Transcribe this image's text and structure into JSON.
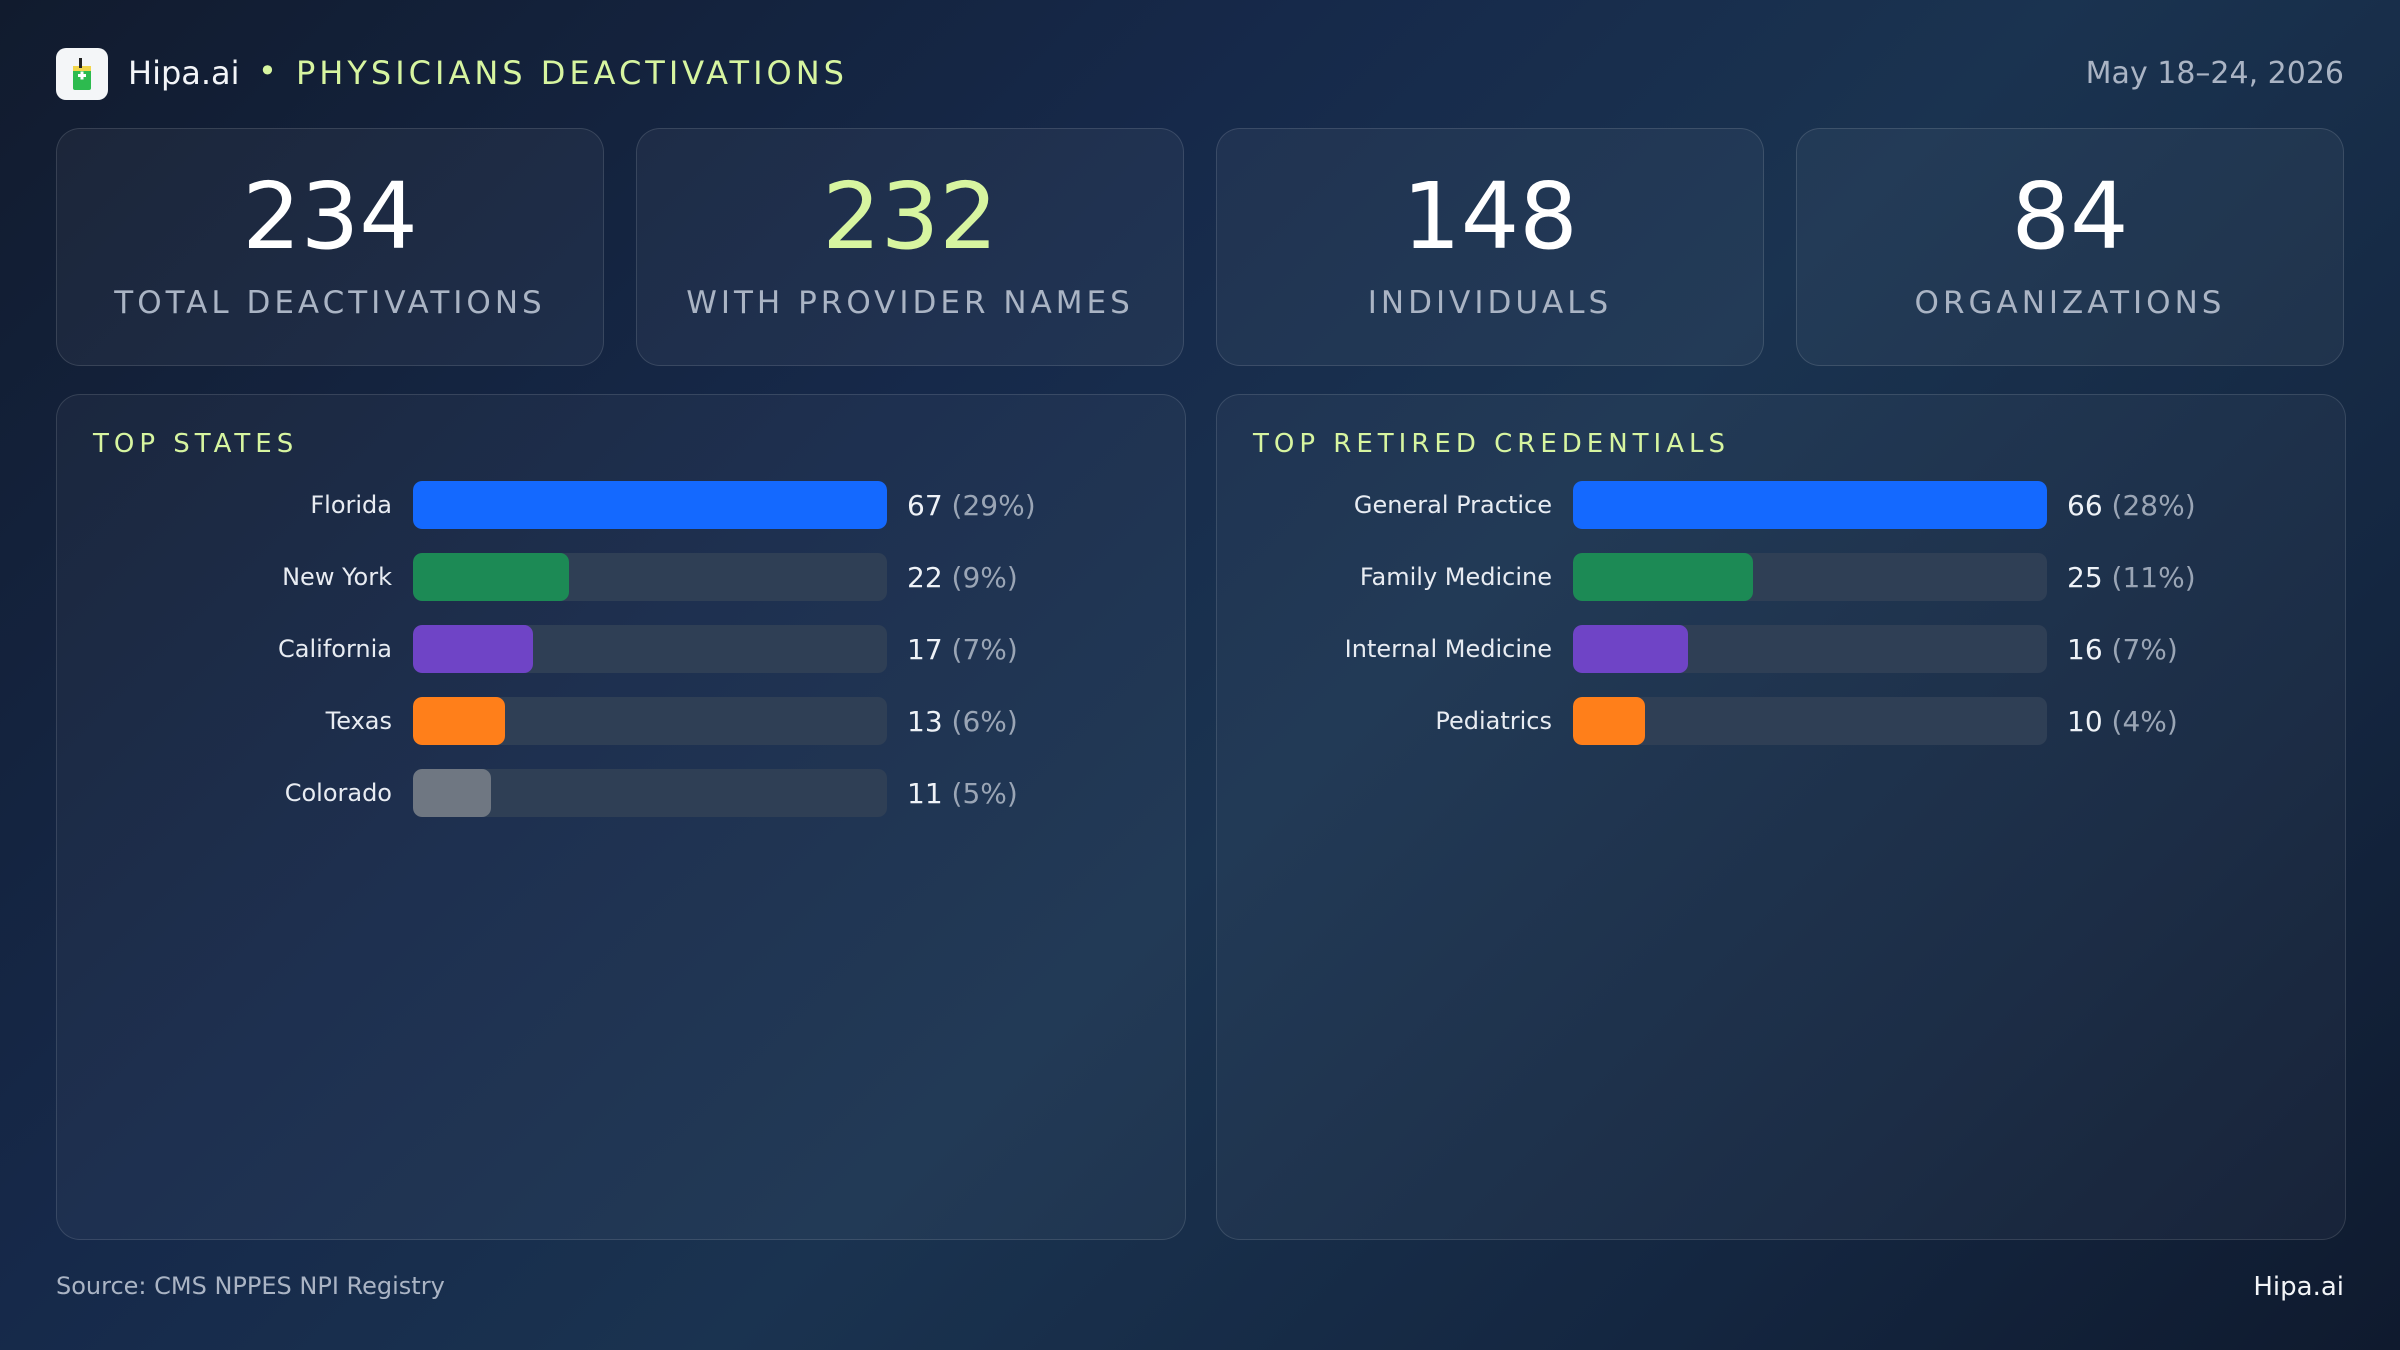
{
  "header": {
    "brand": "Hipa.ai",
    "separator": "•",
    "title": "PHYSICIANS DEACTIVATIONS",
    "date_range": "May 18–24, 2026"
  },
  "kpis": [
    {
      "value": "234",
      "label": "TOTAL DEACTIVATIONS"
    },
    {
      "value": "232",
      "label": "WITH PROVIDER NAMES"
    },
    {
      "value": "148",
      "label": "INDIVIDUALS"
    },
    {
      "value": "84",
      "label": "ORGANIZATIONS"
    }
  ],
  "colors": {
    "accent": "#d7f5a0",
    "blue": "#1469ff",
    "green": "#1c8a55",
    "purple": "#6f44c6",
    "orange": "#ff7f1a",
    "gray": "#6f7782"
  },
  "chart_data": [
    {
      "type": "bar",
      "orientation": "horizontal",
      "title": "TOP STATES",
      "categories": [
        "Florida",
        "New York",
        "California",
        "Texas",
        "Colorado"
      ],
      "values": [
        67,
        22,
        17,
        13,
        11
      ],
      "value_labels": [
        "67",
        "22",
        "17",
        "13",
        "11"
      ],
      "percent_labels": [
        "(29%)",
        "(9%)",
        "(7%)",
        "(6%)",
        "(5%)"
      ],
      "bar_colors": [
        "#1469ff",
        "#1c8a55",
        "#6f44c6",
        "#ff7f1a",
        "#6f7782"
      ],
      "xlim": [
        0,
        67
      ]
    },
    {
      "type": "bar",
      "orientation": "horizontal",
      "title": "TOP RETIRED CREDENTIALS",
      "categories": [
        "General Practice",
        "Family Medicine",
        "Internal Medicine",
        "Pediatrics"
      ],
      "values": [
        66,
        25,
        16,
        10
      ],
      "value_labels": [
        "66",
        "25",
        "16",
        "10"
      ],
      "percent_labels": [
        "(28%)",
        "(11%)",
        "(7%)",
        "(4%)"
      ],
      "bar_colors": [
        "#1469ff",
        "#1c8a55",
        "#6f44c6",
        "#ff7f1a"
      ],
      "xlim": [
        0,
        66
      ]
    }
  ],
  "footer": {
    "source": "Source: CMS NPPES NPI Registry",
    "brand": "Hipa.ai"
  }
}
